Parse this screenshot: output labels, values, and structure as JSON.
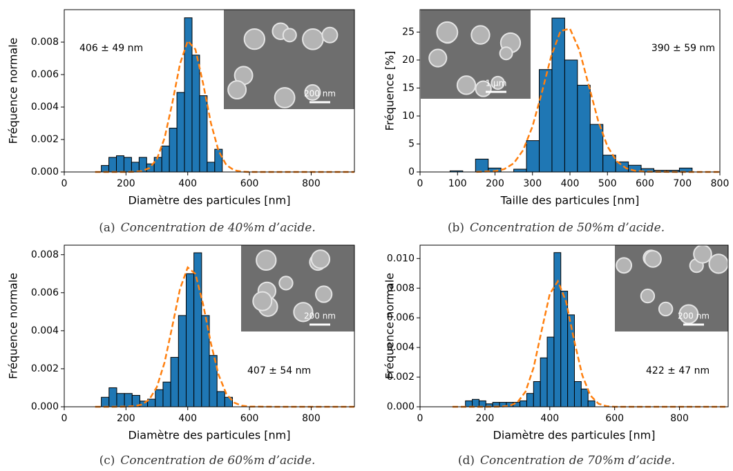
{
  "chart_data": [
    {
      "type": "histogram",
      "caption_label": "(a)",
      "caption": "Concentration de 40%m d’acide.",
      "annotation": "406 ± 49 nm",
      "inset_label": "200 nm",
      "xlabel": "Diamètre des particules [nm]",
      "ylabel": "Fréquence normale",
      "color": "#1f77b4",
      "bins": [
        120,
        144.5,
        169,
        193.5,
        218,
        242.5,
        267,
        291.5,
        316,
        340.5,
        365,
        389.5,
        414,
        438.5,
        463,
        487.5,
        512
      ],
      "values": [
        0.0004,
        0.0009,
        0.001,
        0.0009,
        0.0006,
        0.0009,
        0.0005,
        0.0009,
        0.0016,
        0.0027,
        0.0049,
        0.0095,
        0.0072,
        0.0047,
        0.0006,
        0.0014
      ],
      "fit": {
        "color": "#ff7f0e",
        "x": [
          100,
          150,
          200,
          225,
          250,
          275,
          300,
          325,
          350,
          375,
          400,
          425,
          450,
          475,
          500,
          525,
          550,
          575,
          600,
          700,
          800,
          940
        ],
        "values": [
          0,
          0,
          0,
          1e-05,
          5e-05,
          0.00023,
          0.00078,
          0.00209,
          0.00424,
          0.00666,
          0.00808,
          0.00755,
          0.00544,
          0.00302,
          0.00129,
          0.00043,
          0.00011,
          2e-05,
          0,
          0,
          0,
          0
        ]
      },
      "xlim": [
        0,
        940
      ],
      "xticks": [
        0,
        200,
        400,
        600,
        800
      ],
      "ylim": [
        0,
        0.01
      ],
      "yticks": [
        {
          "value": 0,
          "label": "0.000"
        },
        {
          "value": 0.002,
          "label": "0.002"
        },
        {
          "value": 0.004,
          "label": "0.004"
        },
        {
          "value": 0.006,
          "label": "0.006"
        },
        {
          "value": 0.008,
          "label": "0.008"
        }
      ]
    },
    {
      "type": "histogram",
      "caption_label": "(b)",
      "caption": "Concentration de 50%m d’acide.",
      "annotation": "390 ± 59 nm",
      "inset_label": "1 μm",
      "xlabel": "Taille des particules [nm]",
      "ylabel": "Fréquence [%]",
      "color": "#1f77b4",
      "bins": [
        80,
        114,
        148,
        182,
        216,
        250,
        284,
        318,
        352,
        386,
        420,
        454,
        488,
        522,
        556,
        590,
        624,
        658,
        692,
        726
      ],
      "values": [
        0.2,
        0,
        2.3,
        0.7,
        0,
        0.5,
        5.6,
        18.3,
        27.5,
        20,
        15.5,
        8.5,
        3,
        1.8,
        1.2,
        0.6,
        0.3,
        0.3,
        0.7
      ],
      "fit": {
        "color": "#ff7f0e",
        "x": [
          150,
          200,
          225,
          250,
          275,
          300,
          325,
          350,
          375,
          400,
          425,
          450,
          475,
          500,
          525,
          550,
          575,
          600,
          700,
          800
        ],
        "values": [
          0.01,
          0.15,
          0.52,
          1.55,
          3.89,
          8.13,
          14.2,
          20.7,
          25.2,
          25.6,
          21.8,
          15.5,
          9.21,
          4.57,
          1.89,
          0.66,
          0.19,
          0.05,
          0,
          0
        ]
      },
      "xlim": [
        0,
        800
      ],
      "xticks": [
        0,
        100,
        200,
        300,
        400,
        500,
        600,
        700,
        800
      ],
      "ylim": [
        0,
        29
      ],
      "yticks": [
        0,
        5,
        10,
        15,
        20,
        25
      ]
    },
    {
      "type": "histogram",
      "caption_label": "(c)",
      "caption": "Concentration de 60%m d’acide.",
      "annotation": "407 ± 54 nm",
      "inset_label": "200 nm",
      "xlabel": "Diamètre des particules [nm]",
      "ylabel": "Fréquence normale",
      "color": "#1f77b4",
      "bins": [
        120,
        145,
        170,
        195,
        220,
        245,
        270,
        295,
        320,
        345,
        370,
        395,
        420,
        445,
        470,
        495,
        520,
        545
      ],
      "values": [
        0.0005,
        0.001,
        0.0007,
        0.0007,
        0.0006,
        0.0003,
        0.0004,
        0.0009,
        0.0013,
        0.0026,
        0.0048,
        0.007,
        0.0081,
        0.0048,
        0.0027,
        0.0008,
        0.0005
      ],
      "fit": {
        "color": "#ff7f0e",
        "x": [
          100,
          150,
          200,
          225,
          250,
          275,
          300,
          325,
          350,
          375,
          400,
          425,
          450,
          475,
          500,
          525,
          550,
          575,
          600,
          700,
          800,
          940
        ],
        "values": [
          0,
          0,
          1e-05,
          3e-05,
          0.00011,
          0.00037,
          0.00104,
          0.00233,
          0.00423,
          0.0062,
          0.00733,
          0.00699,
          0.00538,
          0.00335,
          0.00168,
          0.00068,
          0.00022,
          6e-05,
          1e-05,
          0,
          0,
          0
        ]
      },
      "xlim": [
        0,
        940
      ],
      "xticks": [
        0,
        200,
        400,
        600,
        800
      ],
      "ylim": [
        0,
        0.0085
      ],
      "yticks": [
        {
          "value": 0,
          "label": "0.000"
        },
        {
          "value": 0.002,
          "label": "0.002"
        },
        {
          "value": 0.004,
          "label": "0.004"
        },
        {
          "value": 0.006,
          "label": "0.006"
        },
        {
          "value": 0.008,
          "label": "0.008"
        }
      ]
    },
    {
      "type": "histogram",
      "caption_label": "(d)",
      "caption": "Concentration de 70%m d’acide.",
      "annotation": "422 ± 47 nm",
      "inset_label": "200 nm",
      "xlabel": "Diamètre des particules [nm]",
      "ylabel": "Fréquence normale",
      "color": "#1f77b4",
      "bins": [
        140,
        161,
        182,
        203,
        224,
        245,
        266,
        287,
        308,
        329,
        350,
        371,
        392,
        413,
        434,
        455,
        476,
        497,
        518,
        539
      ],
      "values": [
        0.0004,
        0.0005,
        0.0004,
        0.0002,
        0.0003,
        0.0003,
        0.0003,
        0.0003,
        0.0004,
        0.0009,
        0.0017,
        0.0033,
        0.0047,
        0.0104,
        0.0078,
        0.0062,
        0.0017,
        0.0012,
        0.0004
      ],
      "fit": {
        "color": "#ff7f0e",
        "x": [
          100,
          200,
          250,
          275,
          300,
          325,
          350,
          375,
          400,
          425,
          450,
          475,
          500,
          525,
          550,
          575,
          600,
          700,
          800,
          950
        ],
        "values": [
          0,
          0,
          1e-05,
          6e-05,
          0.00029,
          0.00101,
          0.00263,
          0.00515,
          0.00761,
          0.00847,
          0.00711,
          0.00449,
          0.00214,
          0.00077,
          0.00021,
          4e-05,
          0,
          0,
          0,
          0
        ]
      },
      "xlim": [
        0,
        950
      ],
      "xticks": [
        0,
        200,
        400,
        600,
        800
      ],
      "ylim": [
        0,
        0.0109
      ],
      "yticks": [
        {
          "value": 0,
          "label": "0.000"
        },
        {
          "value": 0.002,
          "label": "0.002"
        },
        {
          "value": 0.004,
          "label": "0.004"
        },
        {
          "value": 0.006,
          "label": "0.006"
        },
        {
          "value": 0.008,
          "label": "0.008"
        },
        {
          "value": 0.01,
          "label": "0.010"
        }
      ]
    }
  ]
}
